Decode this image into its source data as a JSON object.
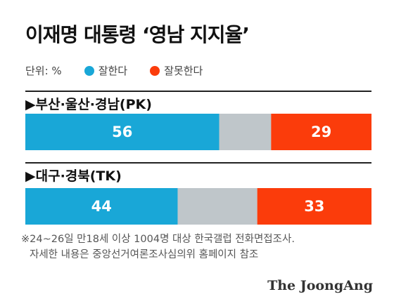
{
  "title": "이재명 대통령 ‘영남 지지율’",
  "unit": "단위: %",
  "colors": {
    "approve": "#19a7d7",
    "neutral": "#bfc6ca",
    "disapprove": "#fb3c0b"
  },
  "chart_data": {
    "type": "bar",
    "stacked": true,
    "orientation": "horizontal",
    "total": 100,
    "categories": [
      "▶부산·울산·경남(PK)",
      "▶대구·경북(TK)"
    ],
    "series": [
      {
        "name": "잘한다",
        "values": [
          56,
          44
        ]
      },
      {
        "name": "잘못한다",
        "values": [
          29,
          33
        ]
      }
    ],
    "legend": "top-left"
  },
  "note": {
    "line1": "※24~26일 만18세 이상 1004명 대상 한국갤럽 전화면접조사.",
    "line2": "자세한 내용은 중앙선거여론조사심의위 홈페이지 참조"
  },
  "brand": "The JoongAng"
}
